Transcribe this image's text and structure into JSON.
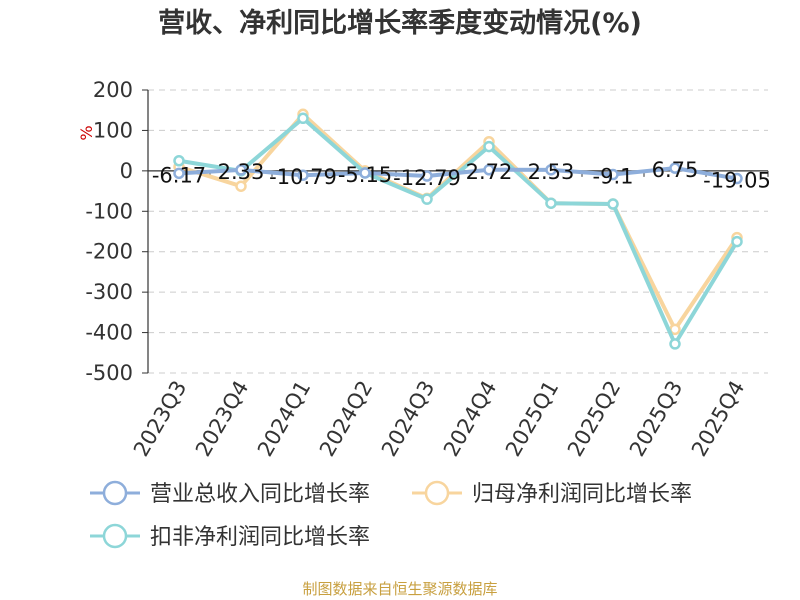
{
  "chart_data": {
    "type": "line",
    "title": "营收、净利同比增长率季度变动情况(%)",
    "ylabel": "%",
    "categories": [
      "2023Q3",
      "2023Q4",
      "2024Q1",
      "2024Q2",
      "2024Q3",
      "2024Q4",
      "2025Q1",
      "2025Q2",
      "2025Q3",
      "2025Q4"
    ],
    "ylim": [
      -500,
      200
    ],
    "yticks": [
      200,
      100,
      0,
      -100,
      -200,
      -300,
      -400,
      -500
    ],
    "grid": true,
    "legend_position": "bottom",
    "series": [
      {
        "name": "营业总收入同比增长率",
        "color": "#8eaedb",
        "values": [
          -6.17,
          2.33,
          -10.79,
          -5.15,
          -12.79,
          2.72,
          2.53,
          -9.1,
          6.75,
          -19.05
        ],
        "labels": [
          "-6.17",
          "2.33",
          "-10.79",
          "-5.15",
          "-12.79",
          "2.72",
          "2.53",
          "-9.1",
          "6.75",
          "-19.05"
        ]
      },
      {
        "name": "归母净利润同比增长率",
        "color": "#f8d59e",
        "values": [
          10,
          -38,
          140,
          0,
          -68,
          72,
          -80,
          -82,
          -392,
          -165
        ]
      },
      {
        "name": "扣非净利润同比增长率",
        "color": "#8dd6d8",
        "values": [
          25,
          0,
          130,
          -5,
          -70,
          60,
          -80,
          -82,
          -428,
          -175
        ]
      }
    ]
  },
  "footer": {
    "source": "制图数据来自恒生聚源数据库"
  }
}
